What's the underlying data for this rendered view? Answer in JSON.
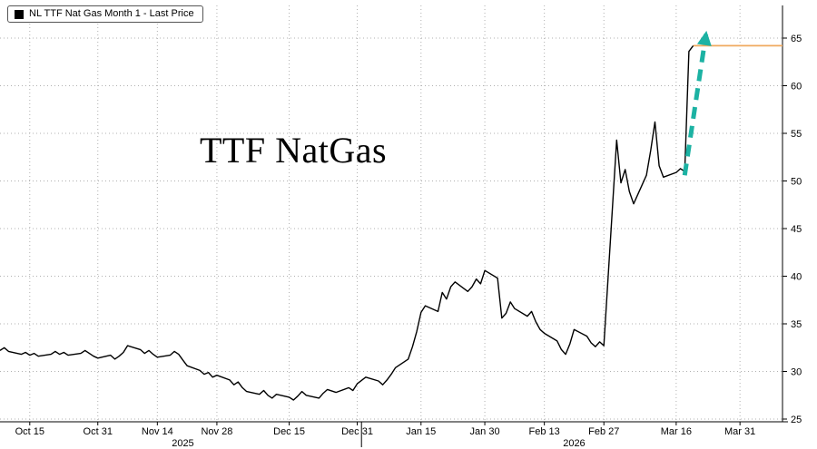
{
  "legend": {
    "label": "NL TTF Nat Gas Month 1 - Last Price",
    "swatch_color": "#000000"
  },
  "colors": {
    "line": "#000000",
    "grid": "#b0b0b0",
    "axis": "#000000",
    "background": "#ffffff",
    "last_price": "#f0a95f",
    "arrow": "#1cb2a3"
  },
  "chart_data": {
    "type": "line",
    "title": "TTF NatGas",
    "legend": [
      "NL TTF Nat Gas Month 1 - Last Price"
    ],
    "grid": true,
    "legend_position": "top-left",
    "ylim": [
      24.5,
      66.5
    ],
    "y_ticks": [
      25,
      30,
      35,
      40,
      45,
      50,
      55,
      60,
      65
    ],
    "x_range": [
      "2025-10-08",
      "2026-04-10"
    ],
    "x_ticks": [
      {
        "date": "2025-10-15",
        "label": "Oct 15"
      },
      {
        "date": "2025-10-31",
        "label": "Oct 31"
      },
      {
        "date": "2025-11-14",
        "label": "Nov 14"
      },
      {
        "date": "2025-11-28",
        "label": "Nov 28"
      },
      {
        "date": "2025-12-15",
        "label": "Dec 15"
      },
      {
        "date": "2025-12-31",
        "label": "Dec 31"
      },
      {
        "date": "2026-01-15",
        "label": "Jan 15"
      },
      {
        "date": "2026-01-30",
        "label": "Jan 30"
      },
      {
        "date": "2026-02-13",
        "label": "Feb 13"
      },
      {
        "date": "2026-02-27",
        "label": "Feb 27"
      },
      {
        "date": "2026-03-16",
        "label": "Mar 16"
      },
      {
        "date": "2026-03-31",
        "label": "Mar 31"
      }
    ],
    "year_labels": [
      {
        "date": "2025-11-20",
        "label": "2025"
      },
      {
        "date": "2026-02-20",
        "label": "2026"
      }
    ],
    "year_separator_date": "2026-01-01",
    "series": [
      {
        "name": "NL TTF Nat Gas Month 1 - Last Price",
        "color": "#000000",
        "points": [
          [
            "2025-10-08",
            32.2
          ],
          [
            "2025-10-09",
            32.5
          ],
          [
            "2025-10-10",
            32.1
          ],
          [
            "2025-10-13",
            31.8
          ],
          [
            "2025-10-14",
            32.0
          ],
          [
            "2025-10-15",
            31.7
          ],
          [
            "2025-10-16",
            31.9
          ],
          [
            "2025-10-17",
            31.6
          ],
          [
            "2025-10-20",
            31.8
          ],
          [
            "2025-10-21",
            32.1
          ],
          [
            "2025-10-22",
            31.8
          ],
          [
            "2025-10-23",
            32.0
          ],
          [
            "2025-10-24",
            31.7
          ],
          [
            "2025-10-27",
            31.9
          ],
          [
            "2025-10-28",
            32.2
          ],
          [
            "2025-10-29",
            31.9
          ],
          [
            "2025-10-30",
            31.6
          ],
          [
            "2025-10-31",
            31.4
          ],
          [
            "2025-11-03",
            31.7
          ],
          [
            "2025-11-04",
            31.3
          ],
          [
            "2025-11-05",
            31.6
          ],
          [
            "2025-11-06",
            32.0
          ],
          [
            "2025-11-07",
            32.7
          ],
          [
            "2025-11-10",
            32.3
          ],
          [
            "2025-11-11",
            31.9
          ],
          [
            "2025-11-12",
            32.2
          ],
          [
            "2025-11-13",
            31.8
          ],
          [
            "2025-11-14",
            31.5
          ],
          [
            "2025-11-17",
            31.7
          ],
          [
            "2025-11-18",
            32.1
          ],
          [
            "2025-11-19",
            31.8
          ],
          [
            "2025-11-20",
            31.2
          ],
          [
            "2025-11-21",
            30.6
          ],
          [
            "2025-11-24",
            30.1
          ],
          [
            "2025-11-25",
            29.7
          ],
          [
            "2025-11-26",
            29.9
          ],
          [
            "2025-11-27",
            29.4
          ],
          [
            "2025-11-28",
            29.6
          ],
          [
            "2025-12-01",
            29.1
          ],
          [
            "2025-12-02",
            28.6
          ],
          [
            "2025-12-03",
            28.9
          ],
          [
            "2025-12-04",
            28.3
          ],
          [
            "2025-12-05",
            27.9
          ],
          [
            "2025-12-08",
            27.6
          ],
          [
            "2025-12-09",
            28.0
          ],
          [
            "2025-12-10",
            27.5
          ],
          [
            "2025-12-11",
            27.2
          ],
          [
            "2025-12-12",
            27.6
          ],
          [
            "2025-12-15",
            27.3
          ],
          [
            "2025-12-16",
            27.0
          ],
          [
            "2025-12-17",
            27.4
          ],
          [
            "2025-12-18",
            27.9
          ],
          [
            "2025-12-19",
            27.5
          ],
          [
            "2025-12-22",
            27.2
          ],
          [
            "2025-12-23",
            27.7
          ],
          [
            "2025-12-24",
            28.1
          ],
          [
            "2025-12-26",
            27.8
          ],
          [
            "2025-12-29",
            28.3
          ],
          [
            "2025-12-30",
            28.0
          ],
          [
            "2025-12-31",
            28.7
          ],
          [
            "2026-01-02",
            29.4
          ],
          [
            "2026-01-05",
            29.0
          ],
          [
            "2026-01-06",
            28.6
          ],
          [
            "2026-01-07",
            29.1
          ],
          [
            "2026-01-08",
            29.7
          ],
          [
            "2026-01-09",
            30.4
          ],
          [
            "2026-01-12",
            31.3
          ],
          [
            "2026-01-13",
            32.6
          ],
          [
            "2026-01-14",
            34.2
          ],
          [
            "2026-01-15",
            36.2
          ],
          [
            "2026-01-16",
            36.9
          ],
          [
            "2026-01-19",
            36.3
          ],
          [
            "2026-01-20",
            38.3
          ],
          [
            "2026-01-21",
            37.6
          ],
          [
            "2026-01-22",
            38.9
          ],
          [
            "2026-01-23",
            39.4
          ],
          [
            "2026-01-26",
            38.4
          ],
          [
            "2026-01-27",
            38.9
          ],
          [
            "2026-01-28",
            39.7
          ],
          [
            "2026-01-29",
            39.2
          ],
          [
            "2026-01-30",
            40.6
          ],
          [
            "2026-02-02",
            39.8
          ],
          [
            "2026-02-03",
            35.6
          ],
          [
            "2026-02-04",
            36.1
          ],
          [
            "2026-02-05",
            37.3
          ],
          [
            "2026-02-06",
            36.6
          ],
          [
            "2026-02-09",
            35.8
          ],
          [
            "2026-02-10",
            36.3
          ],
          [
            "2026-02-11",
            35.2
          ],
          [
            "2026-02-12",
            34.4
          ],
          [
            "2026-02-13",
            34.0
          ],
          [
            "2026-02-16",
            33.2
          ],
          [
            "2026-02-17",
            32.3
          ],
          [
            "2026-02-18",
            31.8
          ],
          [
            "2026-02-19",
            32.9
          ],
          [
            "2026-02-20",
            34.4
          ],
          [
            "2026-02-23",
            33.7
          ],
          [
            "2026-02-24",
            33.0
          ],
          [
            "2026-02-25",
            32.6
          ],
          [
            "2026-02-26",
            33.1
          ],
          [
            "2026-02-27",
            32.7
          ],
          [
            "2026-03-02",
            54.3
          ],
          [
            "2026-03-03",
            49.8
          ],
          [
            "2026-03-04",
            51.2
          ],
          [
            "2026-03-05",
            48.9
          ],
          [
            "2026-03-06",
            47.6
          ],
          [
            "2026-03-09",
            50.6
          ],
          [
            "2026-03-10",
            53.2
          ],
          [
            "2026-03-11",
            56.2
          ],
          [
            "2026-03-12",
            51.6
          ],
          [
            "2026-03-13",
            50.4
          ],
          [
            "2026-03-16",
            50.9
          ],
          [
            "2026-03-17",
            51.3
          ],
          [
            "2026-03-18",
            51.0
          ],
          [
            "2026-03-19",
            63.6
          ],
          [
            "2026-03-20",
            64.2
          ]
        ]
      }
    ],
    "last_price_line": {
      "value": 64.2,
      "from_date": "2026-03-20",
      "color": "#f0a95f"
    },
    "annotation_arrow": {
      "from_date": "2026-03-18",
      "from_value": 50.6,
      "to_date": "2026-03-23",
      "to_value": 65.4,
      "color": "#1cb2a3",
      "style": "dashed"
    }
  }
}
